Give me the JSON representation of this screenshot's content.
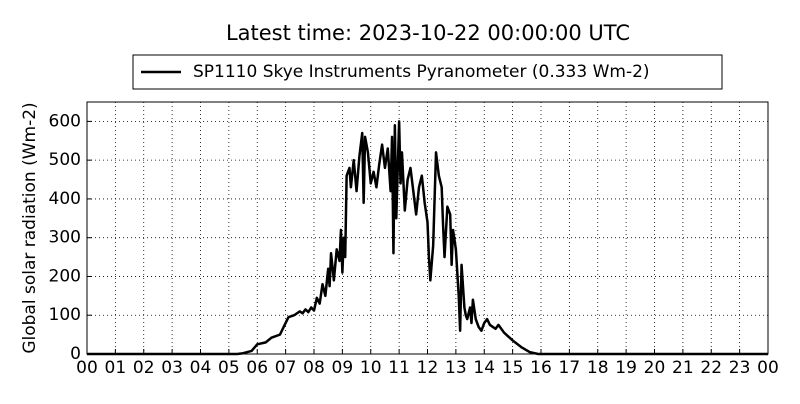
{
  "chart_data": {
    "type": "line",
    "title": "Latest time: 2023-10-22 00:00:00 UTC",
    "ylabel": "Global solar radiation (Wm-2)",
    "legend": "upper center",
    "grid": true,
    "xlim": [
      0,
      24
    ],
    "ylim": [
      0,
      650
    ],
    "yticks": [
      0,
      100,
      200,
      300,
      400,
      500,
      600
    ],
    "xticks": [
      {
        "value": 0,
        "label": "00"
      },
      {
        "value": 1,
        "label": "01"
      },
      {
        "value": 2,
        "label": "02"
      },
      {
        "value": 3,
        "label": "03"
      },
      {
        "value": 4,
        "label": "04"
      },
      {
        "value": 5,
        "label": "05"
      },
      {
        "value": 6,
        "label": "06"
      },
      {
        "value": 7,
        "label": "07"
      },
      {
        "value": 8,
        "label": "08"
      },
      {
        "value": 9,
        "label": "09"
      },
      {
        "value": 10,
        "label": "10"
      },
      {
        "value": 11,
        "label": "11"
      },
      {
        "value": 12,
        "label": "12"
      },
      {
        "value": 13,
        "label": "13"
      },
      {
        "value": 14,
        "label": "14"
      },
      {
        "value": 15,
        "label": "15"
      },
      {
        "value": 16,
        "label": "16"
      },
      {
        "value": 17,
        "label": "17"
      },
      {
        "value": 18,
        "label": "18"
      },
      {
        "value": 19,
        "label": "19"
      },
      {
        "value": 20,
        "label": "20"
      },
      {
        "value": 21,
        "label": "21"
      },
      {
        "value": 22,
        "label": "22"
      },
      {
        "value": 23,
        "label": "23"
      },
      {
        "value": 24,
        "label": "00"
      }
    ],
    "x": [
      0,
      5.3,
      5.5,
      5.8,
      6.0,
      6.3,
      6.5,
      6.8,
      7.0,
      7.1,
      7.3,
      7.5,
      7.6,
      7.7,
      7.8,
      7.9,
      8.0,
      8.1,
      8.2,
      8.3,
      8.4,
      8.5,
      8.55,
      8.6,
      8.7,
      8.8,
      8.9,
      8.95,
      9.0,
      9.05,
      9.1,
      9.15,
      9.25,
      9.3,
      9.4,
      9.5,
      9.6,
      9.7,
      9.75,
      9.8,
      9.9,
      10.0,
      10.1,
      10.2,
      10.3,
      10.4,
      10.5,
      10.6,
      10.7,
      10.75,
      10.8,
      10.85,
      10.9,
      11.0,
      11.05,
      11.1,
      11.2,
      11.3,
      11.4,
      11.5,
      11.6,
      11.7,
      11.8,
      11.9,
      12.0,
      12.05,
      12.1,
      12.2,
      12.3,
      12.4,
      12.5,
      12.55,
      12.6,
      12.7,
      12.8,
      12.85,
      12.9,
      13.0,
      13.1,
      13.15,
      13.2,
      13.3,
      13.35,
      13.4,
      13.5,
      13.55,
      13.6,
      13.7,
      13.8,
      13.9,
      14.0,
      14.1,
      14.2,
      14.4,
      14.5,
      14.7,
      15.0,
      15.3,
      15.6,
      15.9,
      24
    ],
    "series": [
      {
        "name": "SP1110 Skye Instruments Pyranometer (0.333 Wm-2)",
        "color": "#000000",
        "values": [
          0,
          0,
          2,
          8,
          25,
          30,
          42,
          50,
          80,
          95,
          100,
          110,
          105,
          115,
          108,
          120,
          112,
          145,
          130,
          180,
          150,
          220,
          175,
          260,
          190,
          270,
          240,
          320,
          210,
          300,
          250,
          460,
          480,
          430,
          500,
          420,
          510,
          570,
          390,
          560,
          520,
          440,
          470,
          430,
          490,
          540,
          480,
          530,
          420,
          560,
          260,
          590,
          350,
          600,
          440,
          520,
          370,
          450,
          480,
          420,
          360,
          430,
          460,
          390,
          340,
          250,
          190,
          280,
          520,
          460,
          430,
          330,
          250,
          380,
          360,
          230,
          320,
          270,
          150,
          60,
          230,
          120,
          100,
          90,
          120,
          80,
          140,
          90,
          70,
          60,
          80,
          90,
          75,
          65,
          75,
          55,
          35,
          18,
          5,
          0,
          0
        ]
      }
    ]
  }
}
